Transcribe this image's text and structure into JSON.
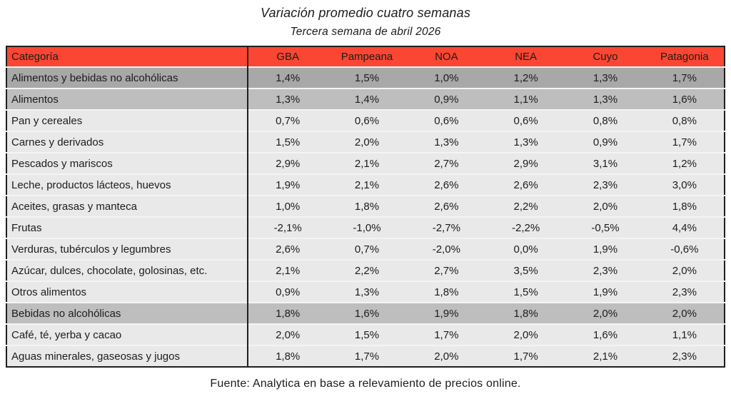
{
  "page": {
    "title": "Variación promedio cuatro semanas",
    "subtitle": "Tercera semana de abril 2026",
    "source": "Fuente: Analytica en base a relevamiento de precios online."
  },
  "colors": {
    "header_bg": "#FA4632",
    "row_dark": "#A8A8A8",
    "row_medium": "#BEBEBE",
    "row_light": "#E9E9E9",
    "border_dark": "#1F1F1F",
    "text": "#1C1C1C"
  },
  "chart_data": {
    "type": "table",
    "title": "Variación promedio cuatro semanas",
    "subtitle": "Tercera semana de abril 2026",
    "source": "Fuente: Analytica en base a relevamiento de precios online.",
    "columns": [
      "Categoría",
      "GBA",
      "Pampeana",
      "NOA",
      "NEA",
      "Cuyo",
      "Patagonia"
    ],
    "rows": [
      {
        "label": "Alimentos y bebidas no alcohólicas",
        "shade": "dark",
        "values": [
          "1,4%",
          "1,5%",
          "1,0%",
          "1,2%",
          "1,3%",
          "1,7%"
        ]
      },
      {
        "label": "Alimentos",
        "shade": "medium",
        "values": [
          "1,3%",
          "1,4%",
          "0,9%",
          "1,1%",
          "1,3%",
          "1,6%"
        ]
      },
      {
        "label": "Pan y cereales",
        "shade": "light",
        "values": [
          "0,7%",
          "0,6%",
          "0,6%",
          "0,6%",
          "0,8%",
          "0,8%"
        ]
      },
      {
        "label": "Carnes y derivados",
        "shade": "light",
        "values": [
          "1,5%",
          "2,0%",
          "1,3%",
          "1,3%",
          "0,9%",
          "1,7%"
        ]
      },
      {
        "label": "Pescados y mariscos",
        "shade": "light",
        "values": [
          "2,9%",
          "2,1%",
          "2,7%",
          "2,9%",
          "3,1%",
          "1,2%"
        ]
      },
      {
        "label": "Leche, productos lácteos, huevos",
        "shade": "light",
        "values": [
          "1,9%",
          "2,1%",
          "2,6%",
          "2,6%",
          "2,3%",
          "3,0%"
        ]
      },
      {
        "label": "Aceites, grasas y manteca",
        "shade": "light",
        "values": [
          "1,0%",
          "1,8%",
          "2,6%",
          "2,2%",
          "2,0%",
          "1,8%"
        ]
      },
      {
        "label": "Frutas",
        "shade": "light",
        "values": [
          "-2,1%",
          "-1,0%",
          "-2,7%",
          "-2,2%",
          "-0,5%",
          "4,4%"
        ]
      },
      {
        "label": "Verduras, tubérculos y legumbres",
        "shade": "light",
        "values": [
          "2,6%",
          "0,7%",
          "-2,0%",
          "0,0%",
          "1,9%",
          "-0,6%"
        ]
      },
      {
        "label": "Azúcar, dulces, chocolate, golosinas, etc.",
        "shade": "light",
        "values": [
          "2,1%",
          "2,2%",
          "2,7%",
          "3,5%",
          "2,3%",
          "2,0%"
        ]
      },
      {
        "label": "Otros alimentos",
        "shade": "light",
        "values": [
          "0,9%",
          "1,3%",
          "1,8%",
          "1,5%",
          "1,9%",
          "2,3%"
        ]
      },
      {
        "label": "Bebidas no alcohólicas",
        "shade": "medium",
        "values": [
          "1,8%",
          "1,6%",
          "1,9%",
          "1,8%",
          "2,0%",
          "2,0%"
        ]
      },
      {
        "label": "Café, té, yerba y cacao",
        "shade": "light",
        "values": [
          "2,0%",
          "1,5%",
          "1,7%",
          "2,0%",
          "1,6%",
          "1,1%"
        ]
      },
      {
        "label": "Aguas minerales, gaseosas y jugos",
        "shade": "light",
        "values": [
          "1,8%",
          "1,7%",
          "2,0%",
          "1,7%",
          "2,1%",
          "2,3%"
        ]
      }
    ]
  }
}
